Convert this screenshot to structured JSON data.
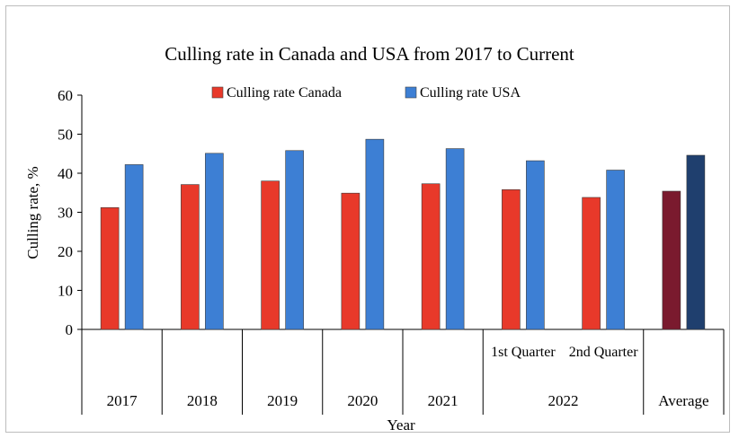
{
  "chart_data": {
    "type": "bar",
    "title": "Culling rate in Canada and USA from 2017 to Current",
    "xlabel": "Year",
    "ylabel": "Culling rate, %",
    "ylim": [
      0,
      60
    ],
    "yticks": [
      0,
      10,
      20,
      30,
      40,
      50,
      60
    ],
    "grid": false,
    "legend_position": "top-center",
    "categories": [
      {
        "sub": "",
        "group": "2017"
      },
      {
        "sub": "",
        "group": "2018"
      },
      {
        "sub": "",
        "group": "2019"
      },
      {
        "sub": "",
        "group": "2020"
      },
      {
        "sub": "",
        "group": "2021"
      },
      {
        "sub": "1st Quarter",
        "group": "2022"
      },
      {
        "sub": "2nd Quarter",
        "group": "2022"
      },
      {
        "sub": "",
        "group": "Average"
      }
    ],
    "series": [
      {
        "name": "Culling rate Canada",
        "color": "#e8392a",
        "highlight_color": "#7a1a2e",
        "values": [
          31.2,
          37.1,
          38.0,
          34.9,
          37.3,
          35.8,
          33.8,
          35.4
        ]
      },
      {
        "name": "Culling rate USA",
        "color": "#3d7fd4",
        "highlight_color": "#1f3f6e",
        "values": [
          42.2,
          45.1,
          45.8,
          48.7,
          46.3,
          43.2,
          40.8,
          44.6
        ]
      }
    ]
  }
}
